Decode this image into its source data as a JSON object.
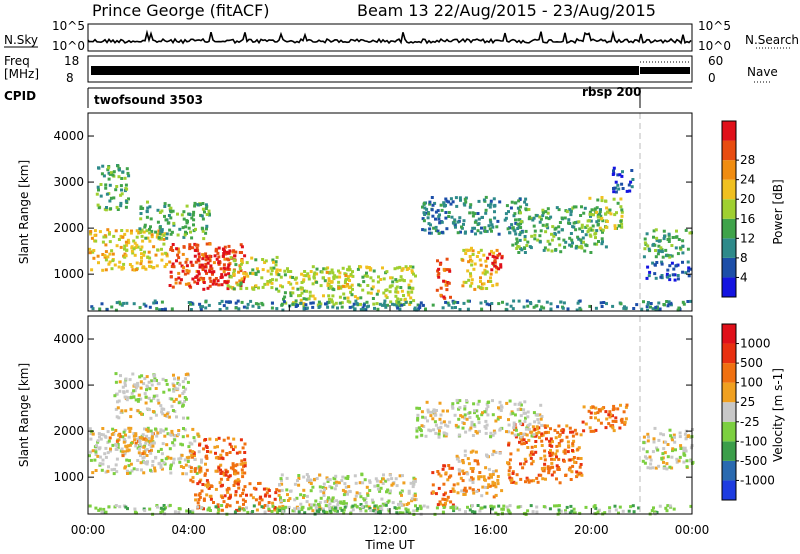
{
  "header": {
    "station": "Prince George (fitACF)",
    "beam_date": "Beam 13 22/Aug/2015 - 23/Aug/2015"
  },
  "top_strip": {
    "nsky_label": "N.Sky",
    "nsky_tick_high": "10^5",
    "nsky_tick_low": "10^0",
    "nsearch_label": "N.Search",
    "nsearch_tick_high": "10^5",
    "nsearch_tick_low": "10^0",
    "freq_label_1": "Freq",
    "freq_label_2": "[MHz]",
    "freq_tick_high": "18",
    "freq_tick_low": "8",
    "nave_label": "Nave",
    "nave_tick_high": "60",
    "nave_tick_low": "0",
    "cpid_label": "CPID",
    "cpid_mode_1": "twofsound 3503",
    "cpid_mode_2": "rbsp 200"
  },
  "x_axis": {
    "title": "Time UT",
    "ticks": [
      "00:00",
      "04:00",
      "08:00",
      "12:00",
      "16:00",
      "20:00",
      "00:00"
    ]
  },
  "colors": {
    "power_scale": [
      "#1414e0",
      "#1c4ea8",
      "#2e8a8a",
      "#3fa34a",
      "#9fcf30",
      "#f0c020",
      "#f08c10",
      "#e84c10",
      "#e0101a"
    ],
    "velocity_scale": [
      "#1e3ce0",
      "#2a6ab0",
      "#3b9e4a",
      "#7ccf40",
      "#c8c8c8",
      "#f0a020",
      "#f07010",
      "#e83010",
      "#e0101a"
    ],
    "gray_scatter": "#c8c8c8"
  },
  "chart_data": [
    {
      "type": "heatmap",
      "panel": "power",
      "ylabel": "Slant Range [km]",
      "yticks": [
        "1000",
        "2000",
        "3000",
        "4000"
      ],
      "ylim": [
        200,
        4500
      ],
      "xlim_hours": [
        0,
        24
      ],
      "colorbar_label": "Power [dB]",
      "colorbar_ticks": [
        "4",
        "8",
        "12",
        "16",
        "20",
        "24",
        "28"
      ],
      "regions": [
        {
          "t0": 0.0,
          "t1": 3.2,
          "r0": 1100,
          "r1": 2000,
          "level": 5
        },
        {
          "t0": 0.3,
          "t1": 1.6,
          "r0": 2400,
          "r1": 3400,
          "level": 3
        },
        {
          "t0": 2.0,
          "t1": 4.8,
          "r0": 1800,
          "r1": 2600,
          "level": 3
        },
        {
          "t0": 3.2,
          "t1": 6.2,
          "r0": 700,
          "r1": 1700,
          "level": 7
        },
        {
          "t0": 4.2,
          "t1": 5.6,
          "r0": 800,
          "r1": 1600,
          "level": 8
        },
        {
          "t0": 5.5,
          "t1": 7.5,
          "r0": 700,
          "r1": 1400,
          "level": 4
        },
        {
          "t0": 7.5,
          "t1": 13.0,
          "r0": 350,
          "r1": 1200,
          "level": 4
        },
        {
          "t0": 9.2,
          "t1": 10.4,
          "r0": 700,
          "r1": 1100,
          "level": 5
        },
        {
          "t0": 13.8,
          "t1": 14.4,
          "r0": 500,
          "r1": 1400,
          "level": 7
        },
        {
          "t0": 14.8,
          "t1": 16.2,
          "r0": 700,
          "r1": 1600,
          "level": 5
        },
        {
          "t0": 15.8,
          "t1": 16.4,
          "r0": 1100,
          "r1": 1500,
          "level": 8
        },
        {
          "t0": 13.2,
          "t1": 17.4,
          "r0": 1900,
          "r1": 2700,
          "level": 2
        },
        {
          "t0": 16.8,
          "t1": 20.6,
          "r0": 1500,
          "r1": 2500,
          "level": 3
        },
        {
          "t0": 19.8,
          "t1": 21.2,
          "r0": 2000,
          "r1": 2700,
          "level": 4
        },
        {
          "t0": 22.0,
          "t1": 24.0,
          "r0": 1400,
          "r1": 2000,
          "level": 3
        },
        {
          "t0": 22.1,
          "t1": 24.0,
          "r0": 900,
          "r1": 1300,
          "level": 1
        },
        {
          "t0": 0.0,
          "t1": 24.0,
          "r0": 250,
          "r1": 450,
          "level": 2
        },
        {
          "t0": 20.8,
          "t1": 21.6,
          "r0": 2800,
          "r1": 3400,
          "level": 1
        }
      ]
    },
    {
      "type": "heatmap",
      "panel": "velocity",
      "ylabel": "Slant Range [km]",
      "yticks": [
        "1000",
        "2000",
        "3000",
        "4000"
      ],
      "ylim": [
        200,
        4500
      ],
      "xlim_hours": [
        0,
        24
      ],
      "colorbar_label": "Velocity [m s-1]",
      "colorbar_ticks": [
        "1000",
        "500",
        "100",
        "25",
        "-25",
        "-100",
        "-500",
        "-1000"
      ],
      "regions": [
        {
          "t0": 0.0,
          "t1": 4.5,
          "r0": 1100,
          "r1": 2100,
          "level": 4
        },
        {
          "t0": 1.0,
          "t1": 4.0,
          "r0": 2300,
          "r1": 3300,
          "level": 4
        },
        {
          "t0": 0.8,
          "t1": 2.6,
          "r0": 1500,
          "r1": 2100,
          "level": 5
        },
        {
          "t0": 4.0,
          "t1": 6.2,
          "r0": 900,
          "r1": 1900,
          "level": 6
        },
        {
          "t0": 4.2,
          "t1": 7.6,
          "r0": 300,
          "r1": 900,
          "level": 6
        },
        {
          "t0": 7.5,
          "t1": 13.0,
          "r0": 300,
          "r1": 1100,
          "level": 4
        },
        {
          "t0": 9.0,
          "t1": 12.0,
          "r0": 250,
          "r1": 500,
          "level": 3
        },
        {
          "t0": 13.6,
          "t1": 14.5,
          "r0": 400,
          "r1": 1300,
          "level": 6
        },
        {
          "t0": 14.6,
          "t1": 16.4,
          "r0": 600,
          "r1": 1600,
          "level": 5
        },
        {
          "t0": 16.6,
          "t1": 19.6,
          "r0": 900,
          "r1": 2200,
          "level": 6
        },
        {
          "t0": 13.0,
          "t1": 18.0,
          "r0": 1900,
          "r1": 2700,
          "level": 4
        },
        {
          "t0": 19.6,
          "t1": 21.4,
          "r0": 2000,
          "r1": 2600,
          "level": 6
        },
        {
          "t0": 22.0,
          "t1": 24.0,
          "r0": 1200,
          "r1": 2100,
          "level": 4
        },
        {
          "t0": 0.0,
          "t1": 24.0,
          "r0": 220,
          "r1": 420,
          "level": 3
        }
      ]
    }
  ]
}
